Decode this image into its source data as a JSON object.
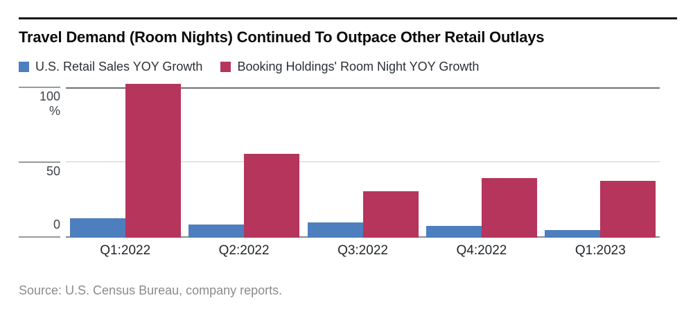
{
  "title": "Travel Demand (Room Nights) Continued To Outpace Other Retail Outlays",
  "source": "Source: U.S. Census Bureau, company reports.",
  "colors": {
    "retail_blue": "#4d7ebe",
    "booking_crimson": "#b5355c",
    "grid_major": "#6f6f6f",
    "grid_minor": "#cdcdcd",
    "baseline": "#8a8a8a",
    "top_rule": "#161616"
  },
  "chart_data": {
    "type": "bar",
    "categories": [
      "Q1:2022",
      "Q2:2022",
      "Q3:2022",
      "Q4:2022",
      "Q1:2023"
    ],
    "series": [
      {
        "name": "U.S. Retail Sales YOY Growth",
        "color": "#4d7ebe",
        "values": [
          13,
          9,
          10,
          8,
          5
        ]
      },
      {
        "name": "Booking Holdings' Room Night YOY Growth",
        "color": "#b5355c",
        "values": [
          111,
          56,
          31,
          40,
          38
        ]
      }
    ],
    "y_axis": {
      "unit": "%",
      "ticks": [
        100,
        50,
        0
      ],
      "ylim": [
        0,
        103
      ]
    },
    "legend_position": "top",
    "grid": "horizontal"
  }
}
